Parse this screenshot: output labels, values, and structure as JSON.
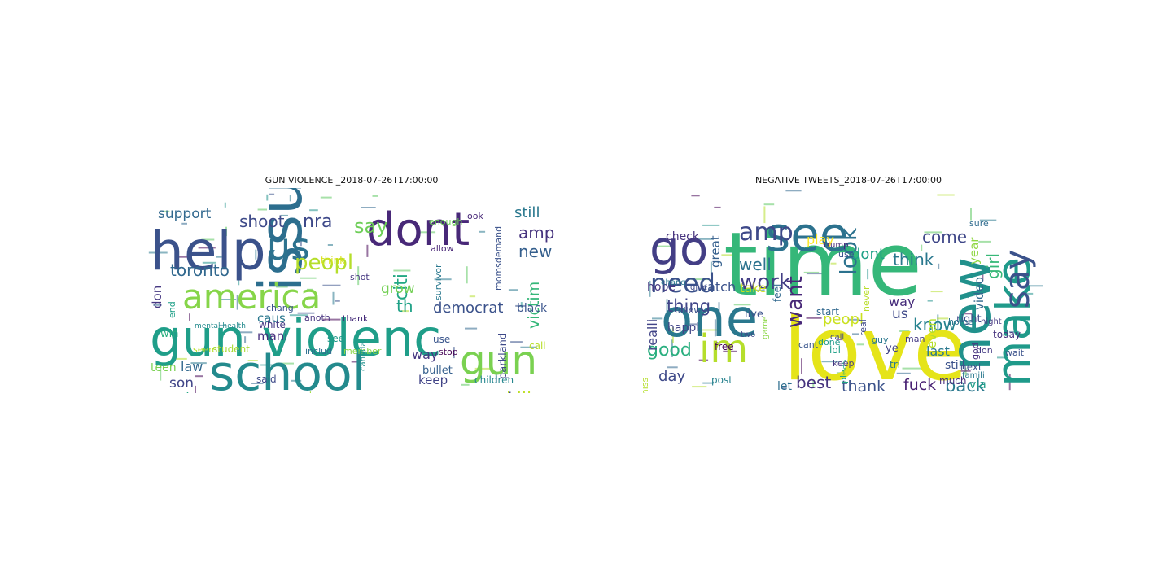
{
  "left": {
    "title": "GUN VIOLENCE _2018-07-26T17:00:00",
    "words": [
      {
        "t": "issu",
        "c": "#2c6e8e"
      },
      {
        "t": "gun violenc",
        "c": "#1f9e89"
      },
      {
        "t": "school",
        "c": "#238a8d"
      },
      {
        "t": "help",
        "c": "#3b528b"
      },
      {
        "t": "dont",
        "c": "#482878"
      },
      {
        "t": "america",
        "c": "#86d549"
      },
      {
        "t": "gun",
        "c": "#7ad151"
      },
      {
        "t": "us",
        "c": "#2c728e"
      },
      {
        "t": "peopl",
        "c": "#b5de2b"
      },
      {
        "t": "shoot",
        "c": "#3e4a89"
      },
      {
        "t": "say",
        "c": "#6ece58"
      },
      {
        "t": "nra",
        "c": "#3e4989"
      },
      {
        "t": "toronto",
        "c": "#31688e"
      },
      {
        "t": "support",
        "c": "#31688e"
      },
      {
        "t": "amp",
        "c": "#46337e"
      },
      {
        "t": "new",
        "c": "#355f8d"
      },
      {
        "t": "still",
        "c": "#2a788e"
      },
      {
        "t": "democrat",
        "c": "#3b528b"
      },
      {
        "t": "citi",
        "c": "#22a884"
      },
      {
        "t": "victim",
        "c": "#35b779"
      },
      {
        "t": "kill",
        "c": "#bddf26"
      },
      {
        "t": "want",
        "c": "#414487"
      },
      {
        "t": "th",
        "c": "#1fa187"
      },
      {
        "t": "grow",
        "c": "#74d055"
      },
      {
        "t": "black",
        "c": "#3a548c"
      },
      {
        "t": "parkland",
        "c": "#3e4989"
      },
      {
        "t": "caus",
        "c": "#2a788e"
      },
      {
        "t": "mani",
        "c": "#472f7d"
      },
      {
        "t": "white",
        "c": "#443983"
      },
      {
        "t": "law",
        "c": "#31688e"
      },
      {
        "t": "son",
        "c": "#404588"
      },
      {
        "t": "georgia",
        "c": "#22a884"
      },
      {
        "t": "way",
        "c": "#453882"
      },
      {
        "t": "keep",
        "c": "#414487"
      },
      {
        "t": "one",
        "c": "#1f9e89"
      },
      {
        "t": "don",
        "c": "#453781"
      },
      {
        "t": "teen",
        "c": "#7ad151"
      },
      {
        "t": "bullet",
        "c": "#355f8d"
      },
      {
        "t": "children",
        "c": "#24868e"
      },
      {
        "t": "stop",
        "c": "#440154"
      },
      {
        "t": "everi",
        "c": "#453882"
      },
      {
        "t": "link",
        "c": "#2a788e"
      },
      {
        "t": "prevent",
        "c": "#9fda3a"
      },
      {
        "t": "domest",
        "c": "#31688e"
      },
      {
        "t": "make",
        "c": "#c2df23"
      },
      {
        "t": "student",
        "c": "#a8db34"
      },
      {
        "t": "includ",
        "c": "#2e6f8e"
      },
      {
        "t": "member",
        "c": "#8bd646"
      },
      {
        "t": "said",
        "c": "#3e4a89"
      },
      {
        "t": "see",
        "c": "#1f9a8a"
      },
      {
        "t": "use",
        "c": "#39558c"
      },
      {
        "t": "call",
        "c": "#b8de29"
      },
      {
        "t": "canada",
        "c": "#21918c"
      },
      {
        "t": "win",
        "c": "#29af7f"
      },
      {
        "t": "end",
        "c": "#1fa088"
      },
      {
        "t": "chang",
        "c": "#3b528b"
      },
      {
        "t": "anoth",
        "c": "#46327e"
      },
      {
        "t": "thank",
        "c": "#472d7b"
      },
      {
        "t": "shot",
        "c": "#453781"
      },
      {
        "t": "think",
        "c": "#d8e219"
      },
      {
        "t": "allow",
        "c": "#482576"
      },
      {
        "t": "survivor",
        "c": "#2a788e"
      },
      {
        "t": "enough",
        "c": "#6ece58"
      },
      {
        "t": "look",
        "c": "#482878"
      },
      {
        "t": "momsdemand",
        "c": "#3b528b"
      },
      {
        "t": "seem",
        "c": "#b8de29"
      },
      {
        "t": "mental health",
        "c": "#238a8d"
      }
    ]
  },
  "right": {
    "title": "NEGATIVE TWEETS_2018-07-26T17:00:00",
    "words": [
      {
        "t": "time",
        "c": "#35b779"
      },
      {
        "t": "love",
        "c": "#e5e419"
      },
      {
        "t": "new",
        "c": "#21918c"
      },
      {
        "t": "make",
        "c": "#1f9a8a"
      },
      {
        "t": "say",
        "c": "#3b528b"
      },
      {
        "t": "one",
        "c": "#2a788e"
      },
      {
        "t": "go",
        "c": "#433e85"
      },
      {
        "t": "see",
        "c": "#2c728e"
      },
      {
        "t": "amp",
        "c": "#3e4989"
      },
      {
        "t": "need",
        "c": "#3b528b"
      },
      {
        "t": "im",
        "c": "#b5de2b"
      },
      {
        "t": "want",
        "c": "#482878"
      },
      {
        "t": "work",
        "c": "#433e85"
      },
      {
        "t": "look",
        "c": "#2c728e"
      },
      {
        "t": "know",
        "c": "#26828e"
      },
      {
        "t": "think",
        "c": "#2a788e"
      },
      {
        "t": "come",
        "c": "#3f4788"
      },
      {
        "t": "good",
        "c": "#29af7f"
      },
      {
        "t": "day",
        "c": "#3e4989"
      },
      {
        "t": "best",
        "c": "#46337e"
      },
      {
        "t": "thank",
        "c": "#3b528b"
      },
      {
        "t": "fuck",
        "c": "#482173"
      },
      {
        "t": "back",
        "c": "#2a788e"
      },
      {
        "t": "girl",
        "c": "#37b878"
      },
      {
        "t": "thing",
        "c": "#404588"
      },
      {
        "t": "well",
        "c": "#2c728e"
      },
      {
        "t": "dont",
        "c": "#1fa187"
      },
      {
        "t": "peopl",
        "c": "#cae11f"
      },
      {
        "t": "play",
        "c": "#fde725"
      },
      {
        "t": "realli",
        "c": "#414487"
      },
      {
        "t": "watch",
        "c": "#3b528b"
      },
      {
        "t": "us",
        "c": "#3e4989"
      },
      {
        "t": "way",
        "c": "#472d7b"
      },
      {
        "t": "video",
        "c": "#31688e"
      },
      {
        "t": "year",
        "c": "#90d743"
      },
      {
        "t": "even",
        "c": "#b5de2b"
      },
      {
        "t": "last",
        "c": "#2a788e"
      },
      {
        "t": "still",
        "c": "#3b528b"
      },
      {
        "t": "via",
        "c": "#1f9e89"
      },
      {
        "t": "great",
        "c": "#355f8d"
      },
      {
        "t": "check",
        "c": "#46337e"
      },
      {
        "t": "let",
        "c": "#2e6e8e"
      },
      {
        "t": "happi",
        "c": "#414487"
      },
      {
        "t": "hope",
        "c": "#453781"
      },
      {
        "t": "take",
        "c": "#cde11d"
      },
      {
        "t": "feel",
        "c": "#31688e"
      },
      {
        "t": "live",
        "c": "#3b528b"
      },
      {
        "t": "right",
        "c": "#3e4989"
      },
      {
        "t": "today",
        "c": "#46327e"
      },
      {
        "t": "next",
        "c": "#3b528b"
      },
      {
        "t": "much",
        "c": "#472d7b"
      },
      {
        "t": "tri",
        "c": "#2a788e"
      },
      {
        "t": "ye",
        "c": "#414487"
      },
      {
        "t": "lol",
        "c": "#1fa088"
      },
      {
        "t": "free",
        "c": "#440154"
      },
      {
        "t": "post",
        "c": "#26828e"
      },
      {
        "t": "miss",
        "c": "#b5de2b"
      },
      {
        "t": "life",
        "c": "#46337e"
      },
      {
        "t": "tweet",
        "c": "#a2da37"
      },
      {
        "t": "pleas",
        "c": "#22a884"
      },
      {
        "t": "keep",
        "c": "#453882"
      },
      {
        "t": "man",
        "c": "#443a83"
      },
      {
        "t": "sure",
        "c": "#2f6b8e"
      },
      {
        "t": "start",
        "c": "#31688e"
      },
      {
        "t": "done",
        "c": "#1f9a8a"
      },
      {
        "t": "real",
        "c": "#3e4989"
      },
      {
        "t": "never",
        "c": "#b8de29"
      },
      {
        "t": "god",
        "c": "#472f7d"
      },
      {
        "t": "guy",
        "c": "#2a788e"
      },
      {
        "t": "don",
        "c": "#443983"
      },
      {
        "t": "use",
        "c": "#3b528b"
      },
      {
        "t": "home",
        "c": "#2c728e"
      },
      {
        "t": "game",
        "c": "#8bd646"
      },
      {
        "t": "cant",
        "c": "#39558c"
      },
      {
        "t": "follow",
        "c": "#3b528b"
      },
      {
        "t": "call",
        "c": "#404588"
      },
      {
        "t": "night",
        "c": "#453882"
      },
      {
        "t": "chang",
        "c": "#2a788e"
      },
      {
        "t": "give",
        "c": "#3e4989"
      },
      {
        "t": "trump",
        "c": "#482878"
      },
      {
        "t": "two",
        "c": "#3e4a89"
      },
      {
        "t": "find",
        "c": "#453882"
      },
      {
        "t": "famili",
        "c": "#2a788e"
      },
      {
        "t": "wait",
        "c": "#3b528b"
      }
    ]
  }
}
